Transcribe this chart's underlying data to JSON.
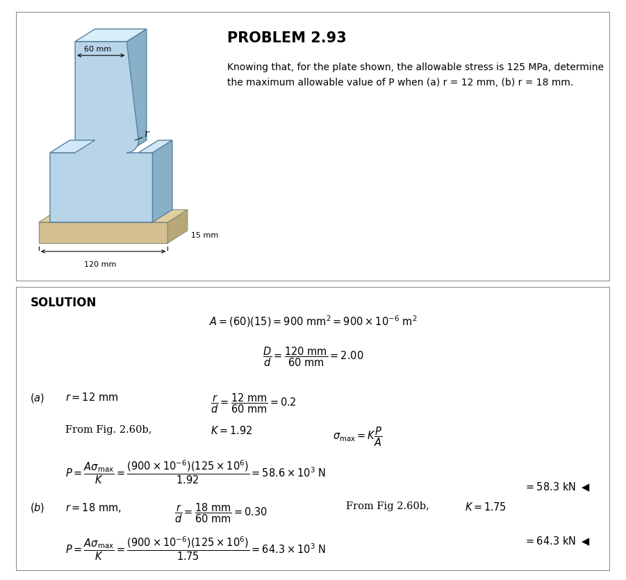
{
  "title": "PROBLEM 2.93",
  "problem_text_line1": "Knowing that, for the plate shown, the allowable stress is 125 MPa, determine",
  "problem_text_line2": "the maximum allowable value of P when (a) r = 12 mm, (b) r = 18 mm.",
  "solution_label": "SOLUTION",
  "bg_color": "#ffffff",
  "plate_front_color": "#c8dce8",
  "plate_light_color": "#ddeef8",
  "plate_dark_color": "#a0b8c8",
  "base_top_color": "#d8c898",
  "base_side_color": "#c0b080",
  "base_bottom_color": "#b09868"
}
